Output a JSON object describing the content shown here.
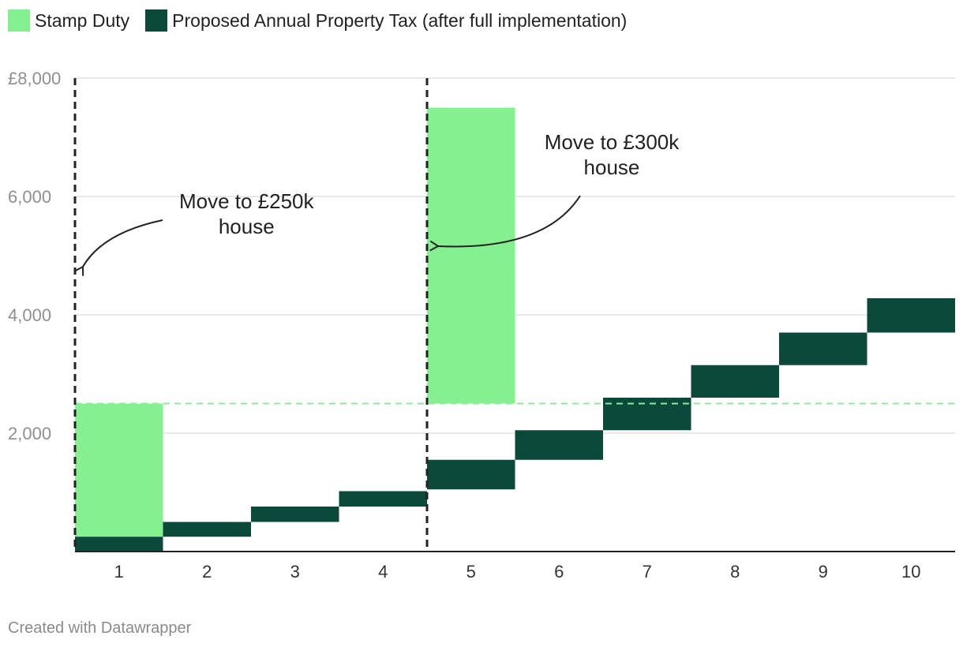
{
  "legend": {
    "stamp_duty": "Stamp Duty",
    "property_tax": "Proposed Annual Property Tax (after full implementation)"
  },
  "colors": {
    "stamp_duty": "#84f08f",
    "property_tax": "#0b4a3a",
    "grid": "#e0e0e0",
    "axis": "#222222",
    "reference_line": "#84f08f"
  },
  "footer": "Created with Datawrapper",
  "chart_data": {
    "type": "bar",
    "categories": [
      "1",
      "2",
      "3",
      "4",
      "5",
      "6",
      "7",
      "8",
      "9",
      "10"
    ],
    "ylim": [
      0,
      8000
    ],
    "yticks": [
      {
        "value": 8000,
        "label": "£8,000"
      },
      {
        "value": 6000,
        "label": "6,000"
      },
      {
        "value": 4000,
        "label": "4,000"
      },
      {
        "value": 2000,
        "label": "2,000"
      }
    ],
    "series": [
      {
        "name": "Stamp Duty",
        "type": "floating",
        "ranges": [
          [
            250,
            2500
          ],
          null,
          null,
          null,
          [
            2500,
            7500
          ],
          null,
          null,
          null,
          null,
          null
        ]
      },
      {
        "name": "Proposed Annual Property Tax (after full implementation)",
        "type": "floating",
        "ranges": [
          [
            0,
            250
          ],
          [
            250,
            500
          ],
          [
            500,
            760
          ],
          [
            760,
            1020
          ],
          [
            1050,
            1550
          ],
          [
            1550,
            2050
          ],
          [
            2050,
            2600
          ],
          [
            2600,
            3150
          ],
          [
            3150,
            3700
          ],
          [
            3700,
            4280
          ]
        ]
      }
    ],
    "reference_line": {
      "value": 2500,
      "style": "dashed"
    },
    "markers": [
      {
        "after_category": 0,
        "label": "Move to £250k house"
      },
      {
        "after_category": 4,
        "label": "Move to £300k house"
      }
    ],
    "annotations": [
      {
        "lines": [
          "Move to £250k",
          "house"
        ],
        "x_category": 1.5,
        "y_value": 5800,
        "arrow_to": [
          0,
          4800
        ]
      },
      {
        "lines": [
          "Move to £300k",
          "house"
        ],
        "x_category": 5.65,
        "y_value": 6800,
        "arrow_to": [
          4.1,
          5200
        ]
      }
    ]
  }
}
